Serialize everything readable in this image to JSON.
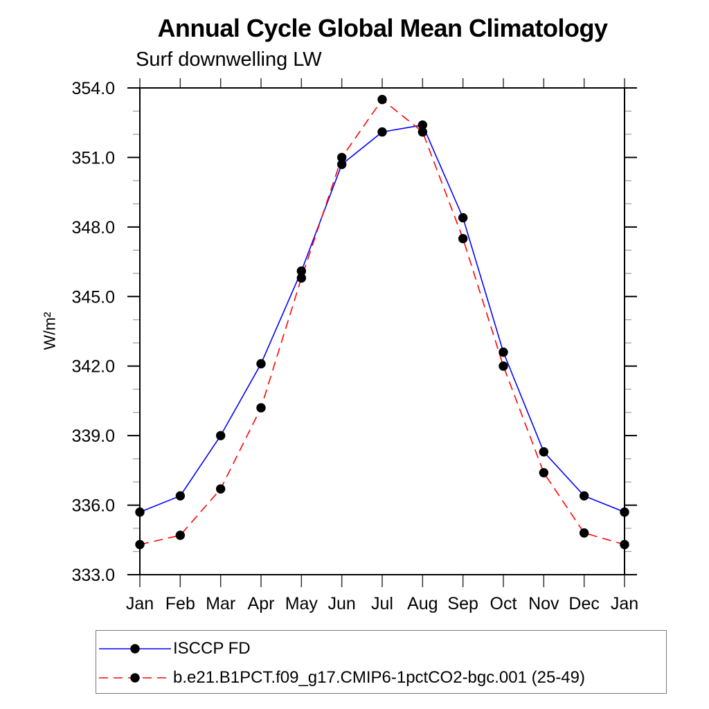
{
  "header": {
    "title": "Annual Cycle Global Mean Climatology",
    "subtitle": "Surf downwelling LW"
  },
  "chart_data": {
    "type": "line",
    "title": "Annual Cycle Global Mean Climatology",
    "subtitle": "Surf downwelling LW",
    "xlabel": "",
    "ylabel": "W/m²",
    "categories": [
      "Jan",
      "Feb",
      "Mar",
      "Apr",
      "May",
      "Jun",
      "Jul",
      "Aug",
      "Sep",
      "Oct",
      "Nov",
      "Dec",
      "Jan"
    ],
    "ylim": [
      333.0,
      354.0
    ],
    "ytick_major_interval": 3.0,
    "ytick_minor_interval": 1.0,
    "ytick_labels": [
      "333.0",
      "336.0",
      "339.0",
      "342.0",
      "345.0",
      "348.0",
      "351.0",
      "354.0"
    ],
    "grid": false,
    "legend_position": "bottom-left",
    "marker": "filled-circle",
    "marker_color": "#000000",
    "series": [
      {
        "name": "ISCCP FD",
        "color": "#0000ff",
        "style": "solid",
        "values": [
          335.7,
          336.4,
          339.0,
          342.1,
          346.1,
          350.7,
          352.1,
          352.4,
          348.4,
          342.6,
          338.3,
          336.4,
          335.7
        ]
      },
      {
        "name": "b.e21.B1PCT.f09_g17.CMIP6-1pctCO2-bgc.001 (25-49)",
        "color": "#ff0000",
        "style": "dashed",
        "values": [
          334.3,
          334.7,
          336.7,
          340.2,
          345.8,
          351.0,
          353.5,
          352.1,
          347.5,
          342.0,
          337.4,
          334.8,
          334.3
        ]
      }
    ],
    "colors": {
      "frame": "#000000",
      "major_tick": "#000000",
      "minor_tick": "#999999",
      "month_tick": "#333333",
      "text": "#000000"
    }
  }
}
